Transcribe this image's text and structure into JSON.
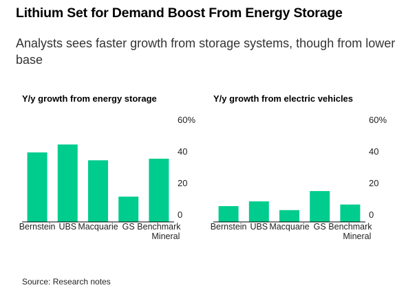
{
  "header": {
    "title": "Lithium Set for Demand Boost From Energy Storage",
    "subtitle": "Analysts sees faster growth from storage systems, though from lower base"
  },
  "footer": {
    "source": "Source: Research notes"
  },
  "colors": {
    "bar": "#00cc8e",
    "axis": "#000000"
  },
  "chart_data": [
    {
      "type": "bar",
      "title": "Y/y growth from energy storage",
      "categories": [
        "Bernstein",
        "UBS",
        "Macquarie",
        "GS",
        "Benchmark Mineral"
      ],
      "values": [
        44,
        49,
        39,
        16,
        40
      ],
      "ylim": [
        0,
        60
      ],
      "yticks": [
        0,
        20,
        40,
        60
      ],
      "ytick_labels": [
        "0",
        "20",
        "40",
        "60%"
      ],
      "grid": false,
      "yaxis_position": "right"
    },
    {
      "type": "bar",
      "title": "Y/y growth from electric vehicles",
      "categories": [
        "Bernstein",
        "UBS",
        "Macquarie",
        "GS",
        "Benchmark Mineral"
      ],
      "values": [
        10,
        13,
        7.5,
        19.5,
        11
      ],
      "ylim": [
        0,
        60
      ],
      "yticks": [
        0,
        20,
        40,
        60
      ],
      "ytick_labels": [
        "0",
        "20",
        "40",
        "60%"
      ],
      "grid": false,
      "yaxis_position": "right"
    }
  ]
}
